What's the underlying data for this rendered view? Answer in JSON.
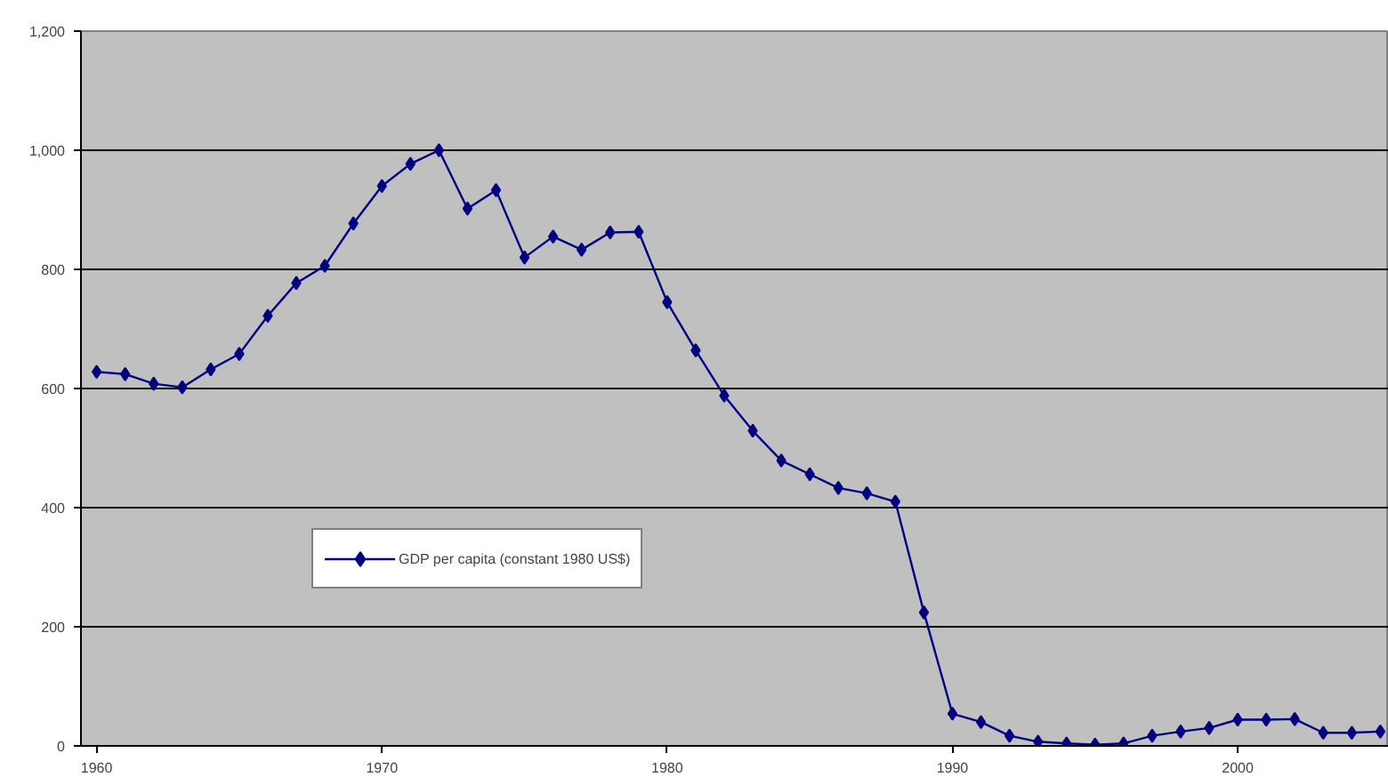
{
  "chart_data": {
    "type": "line",
    "x": [
      1960,
      1961,
      1962,
      1963,
      1964,
      1965,
      1966,
      1967,
      1968,
      1969,
      1970,
      1971,
      1972,
      1973,
      1974,
      1975,
      1976,
      1977,
      1978,
      1979,
      1980,
      1981,
      1982,
      1983,
      1984,
      1985,
      1986,
      1987,
      1988,
      1989,
      1990,
      1991,
      1992,
      1993,
      1994,
      1995,
      1996,
      1997,
      1998,
      1999,
      2000,
      2001,
      2002,
      2003,
      2004,
      2005
    ],
    "series": [
      {
        "name": "GDP per capita (constant 1980 US$)",
        "color": "#000080",
        "values": [
          628,
          624,
          608,
          602,
          632,
          658,
          722,
          777,
          806,
          877,
          940,
          977,
          1000,
          902,
          933,
          820,
          855,
          833,
          862,
          863,
          745,
          664,
          588,
          529,
          479,
          456,
          433,
          424,
          410,
          224,
          54,
          40,
          17,
          7,
          4,
          2,
          4,
          17,
          24,
          30,
          44,
          44,
          45,
          22,
          22,
          24
        ]
      }
    ],
    "xlim": [
      1959.45,
      2005.3
    ],
    "xticks": [
      1960,
      1970,
      1980,
      1990,
      2000
    ],
    "ylim": [
      0,
      1200
    ],
    "yticks": [
      {
        "value": 0,
        "label": "0"
      },
      {
        "value": 200,
        "label": "200"
      },
      {
        "value": 400,
        "label": "400"
      },
      {
        "value": 600,
        "label": "600"
      },
      {
        "value": 800,
        "label": "800"
      },
      {
        "value": 1000,
        "label": "1,000"
      },
      {
        "value": 1200,
        "label": "1,200"
      }
    ],
    "grid": "y",
    "legend": "left",
    "marker": "diamond",
    "line_style": "solid"
  }
}
